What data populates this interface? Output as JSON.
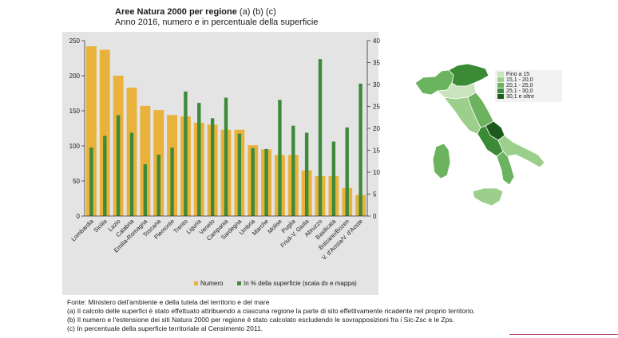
{
  "header": {
    "title_bold": "Aree Natura 2000 per regione",
    "title_rest": " (a) (b) (c)",
    "subtitle": "Anno 2016, numero e in percentuale della superficie"
  },
  "chart_data": {
    "type": "bar",
    "categories": [
      "Lombardia",
      "Sicilia",
      "Lazio",
      "Calabria",
      "Emilia-Romagna",
      "Toscana",
      "Piemonte",
      "Trento",
      "Liguria",
      "Veneto",
      "Campania",
      "Sardegna",
      "Umbria",
      "Marche",
      "Molise",
      "Puglia",
      "Friuli-V. Giulia",
      "Abruzzo",
      "Basilicata",
      "Bolzano/Bozen",
      "V. d'Aosta/V. d'Aoste"
    ],
    "series": [
      {
        "name": "Numero",
        "axis": "left",
        "color": "#e8b23b",
        "values": [
          242,
          237,
          200,
          183,
          157,
          151,
          144,
          142,
          133,
          130,
          123,
          123,
          101,
          95,
          87,
          87,
          65,
          57,
          57,
          40,
          30
        ]
      },
      {
        "name": "In % della superficie (scala dx e mappa)",
        "axis": "right",
        "color": "#3e8a3a",
        "values": [
          15.6,
          18.3,
          23.0,
          19.0,
          11.8,
          14.0,
          15.6,
          28.4,
          25.8,
          22.3,
          27.0,
          18.8,
          15.5,
          15.3,
          26.5,
          20.6,
          19.0,
          35.8,
          17.0,
          20.2,
          30.2
        ]
      }
    ],
    "ylim_left": [
      0,
      250
    ],
    "ylim_right": [
      0,
      40
    ],
    "yticks_left": [
      "0",
      "50",
      "100",
      "150",
      "200",
      "250"
    ],
    "yticks_right": [
      "0",
      "5",
      "10",
      "15",
      "20",
      "25",
      "30",
      "35",
      "40"
    ],
    "grid": false,
    "legend_position": "bottom-left"
  },
  "map": {
    "legend": [
      {
        "label": "Fino a 15",
        "color": "#c9e3bd"
      },
      {
        "label": "15,1 - 20,0",
        "color": "#9dcf8c"
      },
      {
        "label": "20,1 - 25,0",
        "color": "#6bb35f"
      },
      {
        "label": "25,1 - 30,0",
        "color": "#3b8a36"
      },
      {
        "label": "30,1 e oltre",
        "color": "#1d5a1c"
      }
    ]
  },
  "notes": [
    "Fonte: Ministero dell'ambiente e della tutela del territorio e del mare",
    "(a) Il calcolo delle superfici è stato effettuato attribuendo a ciascuna regione la parte di sito effettivamente ricadente nel proprio territorio.",
    "(b) Il numero e l'estensione dei siti Natura 2000 per regione è stato calcolato escludendo le sovrapposizioni fra i Sic-Zsc e le Zps.",
    "(c) In percentuale della superficie territoriale al Censimento 2011."
  ],
  "colors": {
    "panel_bg": "#e4e4e4",
    "accent_rule": "#b03a6a"
  }
}
